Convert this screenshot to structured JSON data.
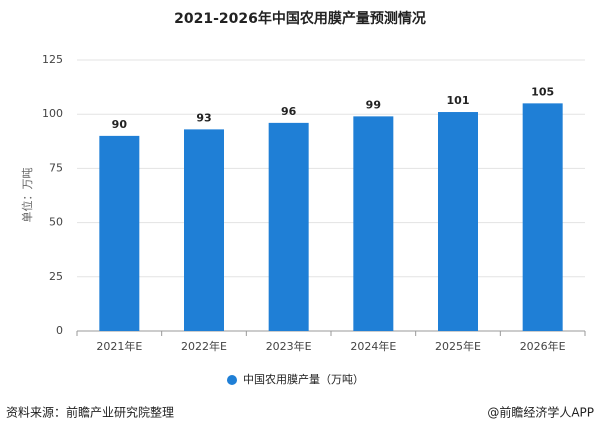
{
  "chart_data": {
    "type": "bar",
    "title": "2021-2026年中国农用膜产量预测情况",
    "y_label": "单位：万吨",
    "categories": [
      "2021年E",
      "2022年E",
      "2023年E",
      "2024年E",
      "2025年E",
      "2026年E"
    ],
    "series": [
      {
        "name": "中国农用膜产量（万吨）",
        "color": "#1f7fd6",
        "values": [
          90,
          93,
          96,
          99,
          101,
          105
        ]
      }
    ],
    "ylim": [
      0,
      125
    ],
    "yticks": [
      0,
      25,
      50,
      75,
      100,
      125
    ],
    "grid": true,
    "legend": "bottom"
  },
  "source": "资料来源：前瞻产业研究院整理",
  "credit": "@前瞻经济学人APP"
}
